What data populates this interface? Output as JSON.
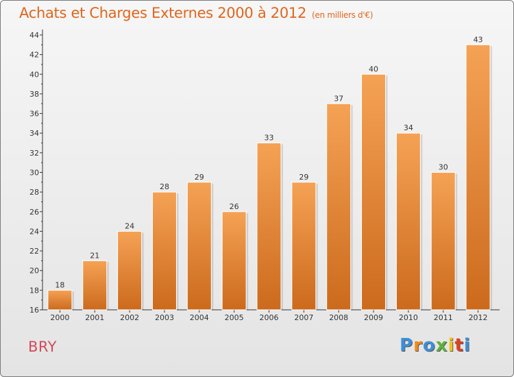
{
  "title": "Achats et Charges Externes 2000 à 2012",
  "subtitle": "(en milliers d'€)",
  "place": "BRY",
  "logo": {
    "text": "Proxiti",
    "letter_colors": [
      "#3e8fd6",
      "#f08a1c",
      "#3e8fd6",
      "#5bb33a",
      "#f0c419",
      "#e0401f",
      "#3e8fd6"
    ]
  },
  "colors": {
    "bar_light": "#f5a255",
    "bar_dark": "#cc6a1c",
    "title": "#e0651c",
    "place": "#d44a5c"
  },
  "chart_data": {
    "type": "bar",
    "categories": [
      "2000",
      "2001",
      "2002",
      "2003",
      "2004",
      "2005",
      "2006",
      "2007",
      "2008",
      "2009",
      "2010",
      "2011",
      "2012"
    ],
    "values": [
      18,
      21,
      24,
      28,
      29,
      26,
      33,
      29,
      37,
      40,
      34,
      30,
      43
    ],
    "ylim": [
      16,
      44
    ],
    "yticks": [
      16,
      18,
      20,
      22,
      24,
      26,
      28,
      30,
      32,
      34,
      36,
      38,
      40,
      42,
      44
    ],
    "grid": false,
    "data_labels": true
  }
}
